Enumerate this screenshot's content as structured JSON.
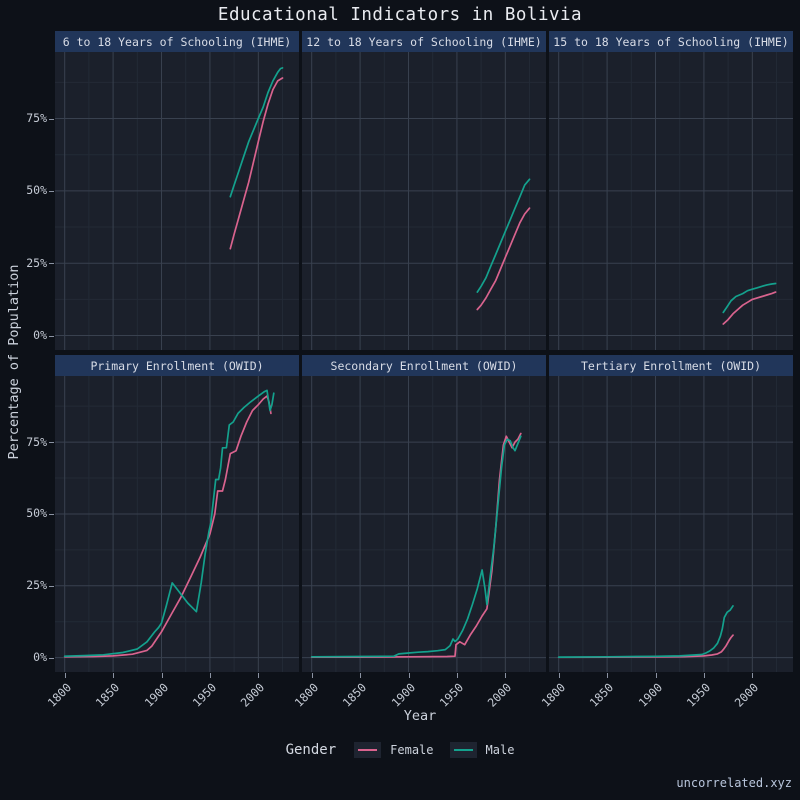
{
  "page": {
    "title": "Educational Indicators in Bolivia",
    "watermark": "uncorrelated.xyz"
  },
  "legend": {
    "title": "Gender",
    "entries": [
      {
        "label": "Female",
        "color": "#d9638e"
      },
      {
        "label": "Male",
        "color": "#14a18d"
      }
    ]
  },
  "axes": {
    "x_label": "Year",
    "y_label": "Percentage of Population",
    "x_tick_values": [
      1800,
      1850,
      1900,
      1950,
      2000
    ],
    "x_tick_labels": [
      "1800",
      "1850",
      "1900",
      "1950",
      "2000"
    ],
    "y_tick_values": [
      0,
      25,
      50,
      75
    ],
    "y_tick_labels": [
      "0%",
      "25%",
      "50%",
      "75%"
    ],
    "x_minor_values": [
      1825,
      1875,
      1925,
      1975,
      2025
    ],
    "y_minor_values": [
      12.5,
      37.5,
      62.5,
      87.5
    ]
  },
  "chart_data": {
    "type": "line",
    "title": "Educational Indicators in Bolivia",
    "xlabel": "Year",
    "ylabel": "Percentage of Population",
    "xlim": [
      1790,
      2042
    ],
    "ylim": [
      -5,
      98
    ],
    "grid": true,
    "legend_position": "bottom",
    "facets": [
      {
        "title": "6 to 18 Years of Schooling (IHME)",
        "series": [
          {
            "name": "Female",
            "color": "#d9638e",
            "points": [
              [
                1971,
                30
              ],
              [
                1975,
                35
              ],
              [
                1980,
                41
              ],
              [
                1985,
                47
              ],
              [
                1990,
                53
              ],
              [
                1995,
                60
              ],
              [
                2000,
                67
              ],
              [
                2005,
                74
              ],
              [
                2010,
                80
              ],
              [
                2015,
                85
              ],
              [
                2020,
                88
              ],
              [
                2025,
                89
              ]
            ]
          },
          {
            "name": "Male",
            "color": "#14a18d",
            "points": [
              [
                1971,
                48
              ],
              [
                1975,
                52
              ],
              [
                1980,
                57
              ],
              [
                1985,
                62
              ],
              [
                1990,
                67
              ],
              [
                1995,
                71
              ],
              [
                2000,
                75
              ],
              [
                2005,
                79
              ],
              [
                2010,
                84
              ],
              [
                2015,
                88
              ],
              [
                2020,
                91
              ],
              [
                2023,
                92.3
              ],
              [
                2025,
                92.5
              ]
            ]
          }
        ]
      },
      {
        "title": "12 to 18 Years of Schooling (IHME)",
        "series": [
          {
            "name": "Female",
            "color": "#d9638e",
            "points": [
              [
                1971,
                9
              ],
              [
                1975,
                10.5
              ],
              [
                1980,
                13
              ],
              [
                1985,
                16
              ],
              [
                1990,
                19
              ],
              [
                1995,
                23
              ],
              [
                2000,
                27
              ],
              [
                2005,
                31
              ],
              [
                2010,
                35
              ],
              [
                2015,
                39
              ],
              [
                2020,
                42
              ],
              [
                2025,
                44
              ]
            ]
          },
          {
            "name": "Male",
            "color": "#14a18d",
            "points": [
              [
                1971,
                15
              ],
              [
                1975,
                17
              ],
              [
                1980,
                20
              ],
              [
                1985,
                24
              ],
              [
                1990,
                28
              ],
              [
                1995,
                32
              ],
              [
                2000,
                36
              ],
              [
                2005,
                40
              ],
              [
                2010,
                44
              ],
              [
                2015,
                48
              ],
              [
                2020,
                52
              ],
              [
                2025,
                54
              ]
            ]
          }
        ]
      },
      {
        "title": "15 to 18 Years of Schooling (IHME)",
        "series": [
          {
            "name": "Female",
            "color": "#d9638e",
            "points": [
              [
                1970,
                4
              ],
              [
                1975,
                5.5
              ],
              [
                1980,
                7.5
              ],
              [
                1985,
                9
              ],
              [
                1990,
                10.5
              ],
              [
                1995,
                11.5
              ],
              [
                2000,
                12.5
              ],
              [
                2005,
                13
              ],
              [
                2010,
                13.5
              ],
              [
                2015,
                14
              ],
              [
                2020,
                14.5
              ],
              [
                2024,
                15
              ]
            ]
          },
          {
            "name": "Male",
            "color": "#14a18d",
            "points": [
              [
                1970,
                8
              ],
              [
                1974,
                10
              ],
              [
                1978,
                12
              ],
              [
                1983,
                13.5
              ],
              [
                1990,
                14.5
              ],
              [
                1995,
                15.5
              ],
              [
                2000,
                16
              ],
              [
                2005,
                16.5
              ],
              [
                2010,
                17
              ],
              [
                2015,
                17.5
              ],
              [
                2020,
                17.8
              ],
              [
                2024,
                18
              ]
            ]
          }
        ]
      },
      {
        "title": "Primary Enrollment (OWID)",
        "series": [
          {
            "name": "Female",
            "color": "#d9638e",
            "points": [
              [
                1800,
                0.3
              ],
              [
                1830,
                0.4
              ],
              [
                1850,
                0.6
              ],
              [
                1870,
                1.2
              ],
              [
                1885,
                2.5
              ],
              [
                1890,
                4
              ],
              [
                1900,
                9
              ],
              [
                1910,
                15
              ],
              [
                1920,
                21
              ],
              [
                1930,
                28
              ],
              [
                1940,
                35
              ],
              [
                1950,
                43
              ],
              [
                1955,
                50
              ],
              [
                1958,
                58
              ],
              [
                1963,
                58
              ],
              [
                1966,
                62
              ],
              [
                1971,
                71
              ],
              [
                1977,
                72
              ],
              [
                1982,
                77
              ],
              [
                1988,
                82
              ],
              [
                1994,
                86
              ],
              [
                2000,
                88
              ],
              [
                2005,
                90
              ],
              [
                2009,
                91
              ],
              [
                2011,
                89
              ],
              [
                2013,
                85
              ]
            ]
          },
          {
            "name": "Male",
            "color": "#14a18d",
            "points": [
              [
                1800,
                0.5
              ],
              [
                1820,
                0.7
              ],
              [
                1840,
                1
              ],
              [
                1860,
                1.8
              ],
              [
                1875,
                3
              ],
              [
                1885,
                5.5
              ],
              [
                1893,
                9
              ],
              [
                1897,
                10.5
              ],
              [
                1900,
                12
              ],
              [
                1905,
                18
              ],
              [
                1911,
                26
              ],
              [
                1918,
                23
              ],
              [
                1927,
                19
              ],
              [
                1936,
                16
              ],
              [
                1941,
                26
              ],
              [
                1945,
                36
              ],
              [
                1949,
                44
              ],
              [
                1951,
                47
              ],
              [
                1954,
                56
              ],
              [
                1956,
                62
              ],
              [
                1959,
                62
              ],
              [
                1961,
                66
              ],
              [
                1963,
                73
              ],
              [
                1967,
                73
              ],
              [
                1970,
                81
              ],
              [
                1974,
                82
              ],
              [
                1979,
                85
              ],
              [
                1985,
                87
              ],
              [
                1992,
                89
              ],
              [
                2000,
                91
              ],
              [
                2006,
                92.5
              ],
              [
                2009,
                93
              ],
              [
                2012,
                86
              ],
              [
                2014,
                88
              ],
              [
                2016,
                92
              ]
            ]
          }
        ]
      },
      {
        "title": "Secondary Enrollment (OWID)",
        "series": [
          {
            "name": "Female",
            "color": "#d9638e",
            "points": [
              [
                1800,
                0.2
              ],
              [
                1850,
                0.2
              ],
              [
                1900,
                0.3
              ],
              [
                1940,
                0.4
              ],
              [
                1948,
                0.5
              ],
              [
                1949,
                4.5
              ],
              [
                1953,
                5.5
              ],
              [
                1958,
                4.5
              ],
              [
                1964,
                8
              ],
              [
                1970,
                11
              ],
              [
                1976,
                14.5
              ],
              [
                1981,
                17
              ],
              [
                1986,
                30
              ],
              [
                1990,
                45
              ],
              [
                1994,
                62
              ],
              [
                1998,
                74
              ],
              [
                2001,
                77
              ],
              [
                2004,
                75
              ],
              [
                2007,
                73
              ],
              [
                2010,
                75
              ],
              [
                2013,
                76
              ],
              [
                2016,
                78
              ]
            ]
          },
          {
            "name": "Male",
            "color": "#14a18d",
            "points": [
              [
                1800,
                0.3
              ],
              [
                1850,
                0.4
              ],
              [
                1885,
                0.5
              ],
              [
                1890,
                1.3
              ],
              [
                1900,
                1.6
              ],
              [
                1910,
                1.9
              ],
              [
                1920,
                2.1
              ],
              [
                1930,
                2.4
              ],
              [
                1938,
                2.8
              ],
              [
                1943,
                4.2
              ],
              [
                1946,
                6.5
              ],
              [
                1948,
                5.6
              ],
              [
                1951,
                6.5
              ],
              [
                1956,
                9.5
              ],
              [
                1961,
                13.5
              ],
              [
                1966,
                18.5
              ],
              [
                1971,
                24
              ],
              [
                1976,
                30.5
              ],
              [
                1979,
                24
              ],
              [
                1981,
                18.5
              ],
              [
                1984,
                27
              ],
              [
                1988,
                38
              ],
              [
                1992,
                52
              ],
              [
                1996,
                66
              ],
              [
                1999,
                74
              ],
              [
                2002,
                76
              ],
              [
                2005,
                75.5
              ],
              [
                2008,
                73
              ],
              [
                2010,
                72
              ],
              [
                2013,
                74.5
              ],
              [
                2016,
                77
              ]
            ]
          }
        ]
      },
      {
        "title": "Tertiary Enrollment (OWID)",
        "series": [
          {
            "name": "Female",
            "color": "#d9638e",
            "points": [
              [
                1800,
                0.1
              ],
              [
                1850,
                0.15
              ],
              [
                1900,
                0.25
              ],
              [
                1930,
                0.35
              ],
              [
                1950,
                0.6
              ],
              [
                1958,
                0.9
              ],
              [
                1964,
                1.3
              ],
              [
                1968,
                2
              ],
              [
                1970,
                2.8
              ],
              [
                1973,
                4.2
              ],
              [
                1976,
                6
              ],
              [
                1978,
                7
              ],
              [
                1980,
                7.8
              ]
            ]
          },
          {
            "name": "Male",
            "color": "#14a18d",
            "points": [
              [
                1800,
                0.2
              ],
              [
                1850,
                0.3
              ],
              [
                1900,
                0.45
              ],
              [
                1925,
                0.6
              ],
              [
                1940,
                0.9
              ],
              [
                1948,
                1.1
              ],
              [
                1952,
                1.6
              ],
              [
                1956,
                2.3
              ],
              [
                1960,
                3.3
              ],
              [
                1964,
                5
              ],
              [
                1967,
                7.5
              ],
              [
                1969,
                10
              ],
              [
                1971,
                14
              ],
              [
                1974,
                15.8
              ],
              [
                1977,
                16.5
              ],
              [
                1980,
                18
              ]
            ]
          }
        ]
      }
    ]
  },
  "style": {
    "background": "#0d1118",
    "panel_background": "#1b202b",
    "header_background": "#21365a",
    "grid_major": "#39414f",
    "grid_minor": "#232a36",
    "tick_color": "#8b93a3"
  }
}
